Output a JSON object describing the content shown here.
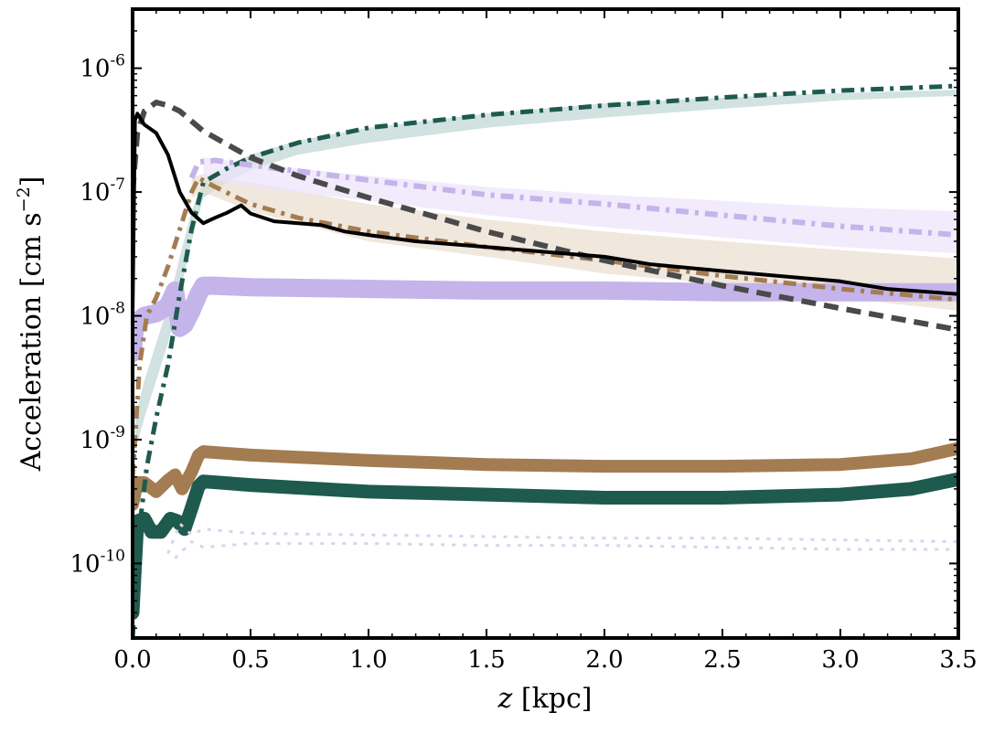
{
  "chart_data": {
    "type": "line",
    "xlabel_var": "z",
    "xlabel_unit": " [kpc]",
    "ylabel_main": "Acceleration [cm s",
    "ylabel_exp": "−2",
    "ylabel_close": "]",
    "x_scale": "linear",
    "y_scale": "log",
    "xlim": [
      0.0,
      3.5
    ],
    "ylim": [
      2.5e-11,
      3e-06
    ],
    "grid": false,
    "x_ticks": [
      {
        "value": 0.0,
        "label": "0.0"
      },
      {
        "value": 0.5,
        "label": "0.5"
      },
      {
        "value": 1.0,
        "label": "1.0"
      },
      {
        "value": 1.5,
        "label": "1.5"
      },
      {
        "value": 2.0,
        "label": "2.0"
      },
      {
        "value": 2.5,
        "label": "2.5"
      },
      {
        "value": 3.0,
        "label": "3.0"
      },
      {
        "value": 3.5,
        "label": "3.5"
      }
    ],
    "y_ticks": [
      {
        "value": 1e-10,
        "base": "10",
        "exp": "-10"
      },
      {
        "value": 1e-09,
        "base": "10",
        "exp": "-9"
      },
      {
        "value": 1e-08,
        "base": "10",
        "exp": "-8"
      },
      {
        "value": 1e-07,
        "base": "10",
        "exp": "-7"
      },
      {
        "value": 1e-06,
        "base": "10",
        "exp": "-6"
      }
    ],
    "bands": [
      {
        "color": "#b9d2cf",
        "opacity": 0.65,
        "x": [
          0.01,
          0.05,
          0.1,
          0.15,
          0.2,
          0.25,
          0.3,
          0.4,
          0.5,
          0.7,
          1.0,
          1.5,
          2.0,
          2.5,
          3.0,
          3.5
        ],
        "lower": [
          8e-10,
          1.5e-09,
          3e-09,
          6e-09,
          1.5e-08,
          4e-08,
          9e-08,
          1.2e-07,
          1.5e-07,
          2e-07,
          2.5e-07,
          3.3e-07,
          4e-07,
          4.7e-07,
          5.5e-07,
          6e-07
        ],
        "upper": [
          1.5e-09,
          3e-09,
          6e-09,
          1.2e-08,
          3e-08,
          7e-08,
          1.2e-07,
          1.6e-07,
          2e-07,
          2.6e-07,
          3.3e-07,
          4.3e-07,
          5.2e-07,
          5.8e-07,
          6.3e-07,
          6.7e-07
        ]
      },
      {
        "color": "#e9ddcf",
        "opacity": 0.7,
        "x": [
          0.25,
          0.3,
          0.5,
          1.0,
          1.5,
          2.0,
          2.5,
          3.0,
          3.5
        ],
        "lower": [
          9e-08,
          1e-07,
          7e-08,
          4e-08,
          3e-08,
          2.2e-08,
          1.8e-08,
          1.4e-08,
          1.1e-08
        ],
        "upper": [
          1.3e-07,
          1.4e-07,
          1.2e-07,
          8e-08,
          6e-08,
          4.8e-08,
          4e-08,
          3.4e-08,
          2.9e-08
        ]
      },
      {
        "color": "#ece4fb",
        "opacity": 0.75,
        "x": [
          0.3,
          0.5,
          1.0,
          1.5,
          2.0,
          2.5,
          3.0,
          3.5
        ],
        "lower": [
          1.3e-07,
          1.1e-07,
          8.5e-08,
          6.5e-08,
          5.2e-08,
          4.3e-08,
          3.6e-08,
          3.2e-08
        ],
        "upper": [
          1.9e-07,
          1.7e-07,
          1.35e-07,
          1.1e-07,
          9.5e-08,
          8.5e-08,
          7.5e-08,
          7e-08
        ]
      }
    ],
    "series": [
      {
        "color": "#c4b4ea",
        "style": "solid",
        "width": 20,
        "x": [
          0.0,
          0.01,
          0.02,
          0.05,
          0.1,
          0.15,
          0.18,
          0.2,
          0.22,
          0.25,
          0.28,
          0.3,
          0.35,
          0.5,
          1.0,
          1.5,
          2.0,
          2.5,
          3.0,
          3.5
        ],
        "y": [
          5e-09,
          8e-09,
          9e-09,
          1e-08,
          1.05e-08,
          1.2e-08,
          1.6e-08,
          8e-09,
          8.5e-09,
          1.1e-08,
          1.5e-08,
          1.75e-08,
          1.75e-08,
          1.7e-08,
          1.65e-08,
          1.6e-08,
          1.6e-08,
          1.55e-08,
          1.55e-08,
          1.55e-08
        ]
      },
      {
        "color": "#a37c52",
        "style": "solid",
        "width": 14,
        "x": [
          0.0,
          0.02,
          0.05,
          0.1,
          0.15,
          0.18,
          0.21,
          0.25,
          0.28,
          0.3,
          0.5,
          1.0,
          1.5,
          2.0,
          2.5,
          3.0,
          3.3,
          3.5
        ],
        "y": [
          3e-10,
          4.5e-10,
          4.5e-10,
          3.8e-10,
          4.7e-10,
          5.2e-10,
          4e-10,
          5.5e-10,
          7.5e-10,
          8e-10,
          7.5e-10,
          6.8e-10,
          6.3e-10,
          6.1e-10,
          6.1e-10,
          6.3e-10,
          7e-10,
          8.5e-10
        ]
      },
      {
        "color": "#1e5a4e",
        "style": "solid",
        "width": 15,
        "x": [
          0.0,
          0.02,
          0.05,
          0.08,
          0.12,
          0.16,
          0.19,
          0.22,
          0.25,
          0.28,
          0.3,
          0.5,
          1.0,
          1.5,
          2.0,
          2.5,
          3.0,
          3.3,
          3.5
        ],
        "y": [
          4e-11,
          2.2e-10,
          2.3e-10,
          1.8e-10,
          1.8e-10,
          2.3e-10,
          2.2e-10,
          1.9e-10,
          2.8e-10,
          4.2e-10,
          4.6e-10,
          4.3e-10,
          3.8e-10,
          3.6e-10,
          3.4e-10,
          3.4e-10,
          3.6e-10,
          4e-10,
          4.8e-10
        ]
      },
      {
        "color": "#d9d3ee",
        "style": "dotted",
        "width": 3,
        "x": [
          0.15,
          0.2,
          0.25,
          0.3,
          0.5,
          1.0,
          1.5,
          2.0,
          2.5,
          3.0,
          3.5
        ],
        "y": [
          1.2e-10,
          2.1e-10,
          1.7e-10,
          1.9e-10,
          1.75e-10,
          1.7e-10,
          1.65e-10,
          1.6e-10,
          1.6e-10,
          1.55e-10,
          1.5e-10
        ]
      },
      {
        "color": "#d9d3ee",
        "style": "dotted",
        "width": 3,
        "x": [
          0.18,
          0.25,
          0.3,
          0.5,
          1.0,
          1.5,
          2.0,
          2.5,
          3.0,
          3.5
        ],
        "y": [
          1.1e-10,
          1.5e-10,
          1.35e-10,
          1.45e-10,
          1.45e-10,
          1.4e-10,
          1.4e-10,
          1.35e-10,
          1.3e-10,
          1.3e-10
        ]
      },
      {
        "color": "#1e5a4e",
        "style": "dashdot",
        "width": 5,
        "x": [
          0.0,
          0.03,
          0.06,
          0.1,
          0.15,
          0.2,
          0.25,
          0.3,
          0.4,
          0.5,
          0.7,
          1.0,
          1.5,
          2.0,
          2.5,
          3.0,
          3.5
        ],
        "y": [
          2.5e-11,
          2e-10,
          6e-10,
          1.5e-09,
          4e-09,
          1.5e-08,
          5e-08,
          1.2e-07,
          1.55e-07,
          1.9e-07,
          2.5e-07,
          3.3e-07,
          4.2e-07,
          5e-07,
          5.8e-07,
          6.6e-07,
          7.2e-07
        ]
      },
      {
        "color": "#a37c52",
        "style": "dashdot",
        "width": 5,
        "x": [
          0.0,
          0.03,
          0.06,
          0.1,
          0.15,
          0.2,
          0.25,
          0.28,
          0.35,
          0.5,
          0.7,
          1.0,
          1.5,
          2.0,
          2.5,
          3.0,
          3.5
        ],
        "y": [
          5e-10,
          4e-09,
          1e-08,
          1.4e-08,
          2.5e-08,
          5e-08,
          1e-07,
          1.3e-07,
          1.1e-07,
          8e-08,
          6.2e-08,
          4.8e-08,
          3.6e-08,
          2.8e-08,
          2.1e-08,
          1.65e-08,
          1.35e-08
        ]
      },
      {
        "color": "#c4b4ea",
        "style": "dashdot",
        "width": 6,
        "x": [
          0.25,
          0.28,
          0.35,
          0.5,
          1.0,
          1.5,
          2.0,
          2.5,
          3.0,
          3.5
        ],
        "y": [
          1.3e-07,
          1.75e-07,
          1.8e-07,
          1.65e-07,
          1.25e-07,
          9.5e-08,
          8e-08,
          6.5e-08,
          5.3e-08,
          4.5e-08
        ]
      },
      {
        "color": "#4a4a4a",
        "style": "dashed",
        "width": 6,
        "x": [
          0.0,
          0.02,
          0.05,
          0.1,
          0.15,
          0.2,
          0.3,
          0.5,
          0.7,
          1.0,
          1.5,
          2.0,
          2.5,
          3.0,
          3.5
        ],
        "y": [
          1e-07,
          3e-07,
          4.5e-07,
          5.3e-07,
          5e-07,
          4.5e-07,
          3.1e-07,
          1.9e-07,
          1.35e-07,
          9e-08,
          4.8e-08,
          2.8e-08,
          1.75e-08,
          1.15e-08,
          7.7e-09
        ]
      },
      {
        "color": "#000000",
        "style": "solid",
        "width": 4,
        "x": [
          0.0,
          0.01,
          0.02,
          0.05,
          0.1,
          0.15,
          0.2,
          0.25,
          0.3,
          0.35,
          0.4,
          0.46,
          0.5,
          0.6,
          0.8,
          0.9,
          1.0,
          1.2,
          1.5,
          2.0,
          2.2,
          2.5,
          3.0,
          3.2,
          3.5
        ],
        "y": [
          1e-08,
          3.8e-07,
          4.3e-07,
          3.5e-07,
          3e-07,
          2e-07,
          1e-07,
          6.8e-08,
          5.6e-08,
          6.2e-08,
          6.8e-08,
          7.8e-08,
          6.7e-08,
          5.8e-08,
          5.4e-08,
          4.8e-08,
          4.5e-08,
          4e-08,
          3.6e-08,
          3e-08,
          2.6e-08,
          2.3e-08,
          1.9e-08,
          1.65e-08,
          1.5e-08
        ]
      }
    ]
  }
}
